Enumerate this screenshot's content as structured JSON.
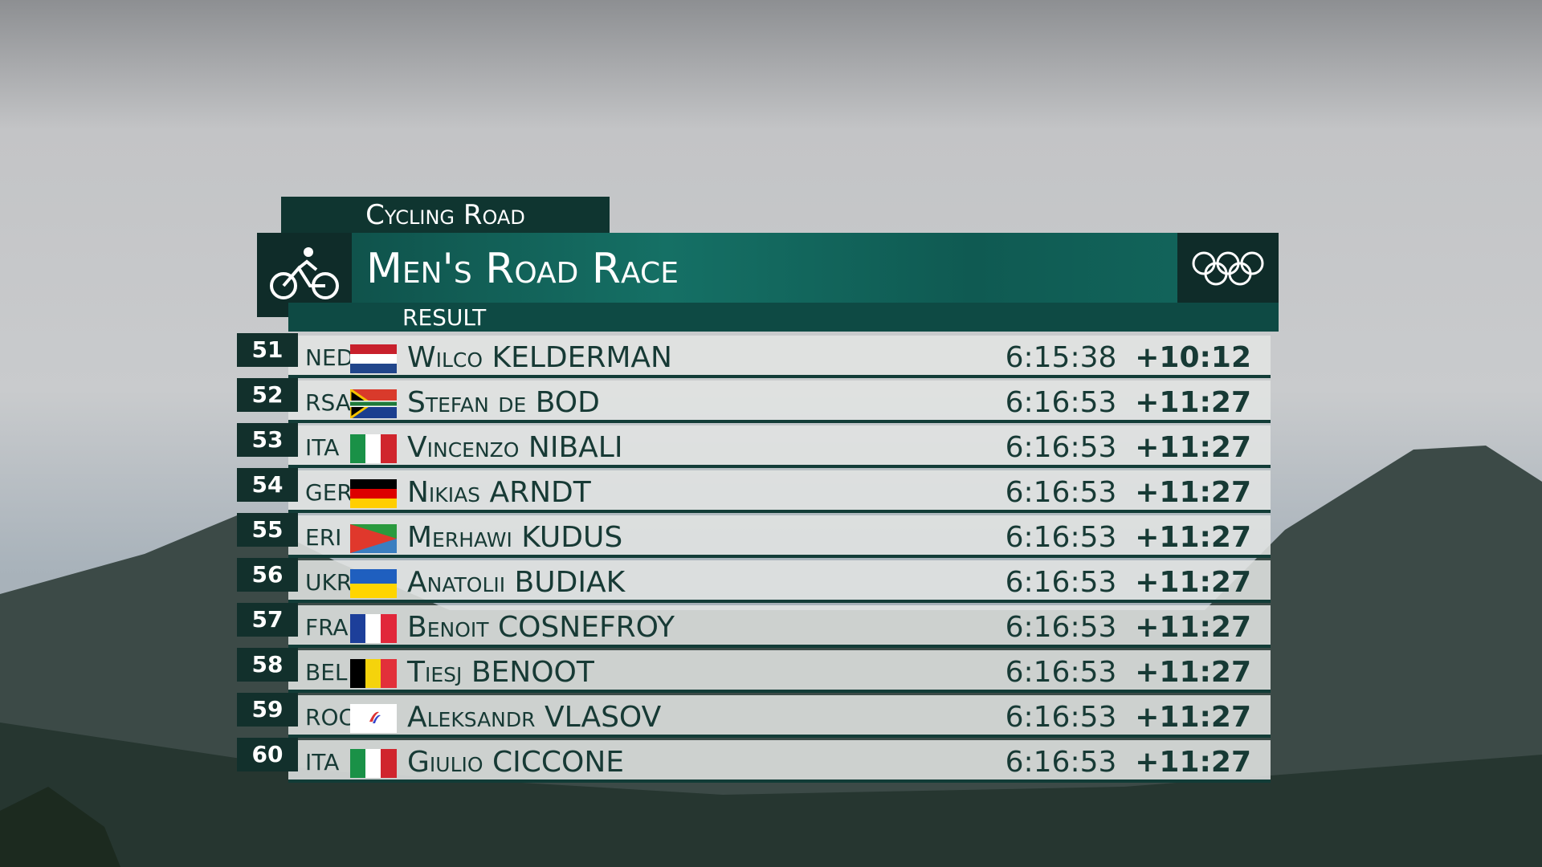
{
  "header": {
    "sport": "Cycling Road",
    "event": "Men's Road Race",
    "phase": "RESULT"
  },
  "rows": [
    {
      "rank": "51",
      "noc": "NED",
      "name": "Wilco KELDERMAN",
      "time": "6:15:38",
      "gap": "+10:12"
    },
    {
      "rank": "52",
      "noc": "RSA",
      "name": "Stefan de BOD",
      "time": "6:16:53",
      "gap": "+11:27"
    },
    {
      "rank": "53",
      "noc": "ITA",
      "name": "Vincenzo NIBALI",
      "time": "6:16:53",
      "gap": "+11:27"
    },
    {
      "rank": "54",
      "noc": "GER",
      "name": "Nikias ARNDT",
      "time": "6:16:53",
      "gap": "+11:27"
    },
    {
      "rank": "55",
      "noc": "ERI",
      "name": "Merhawi KUDUS",
      "time": "6:16:53",
      "gap": "+11:27"
    },
    {
      "rank": "56",
      "noc": "UKR",
      "name": "Anatolii BUDIAK",
      "time": "6:16:53",
      "gap": "+11:27"
    },
    {
      "rank": "57",
      "noc": "FRA",
      "name": "Benoit COSNEFROY",
      "time": "6:16:53",
      "gap": "+11:27"
    },
    {
      "rank": "58",
      "noc": "BEL",
      "name": "Tiesj BENOOT",
      "time": "6:16:53",
      "gap": "+11:27"
    },
    {
      "rank": "59",
      "noc": "ROC",
      "name": "Aleksandr VLASOV",
      "time": "6:16:53",
      "gap": "+11:27"
    },
    {
      "rank": "60",
      "noc": "ITA",
      "name": "Giulio CICCONE",
      "time": "6:16:53",
      "gap": "+11:27"
    }
  ]
}
